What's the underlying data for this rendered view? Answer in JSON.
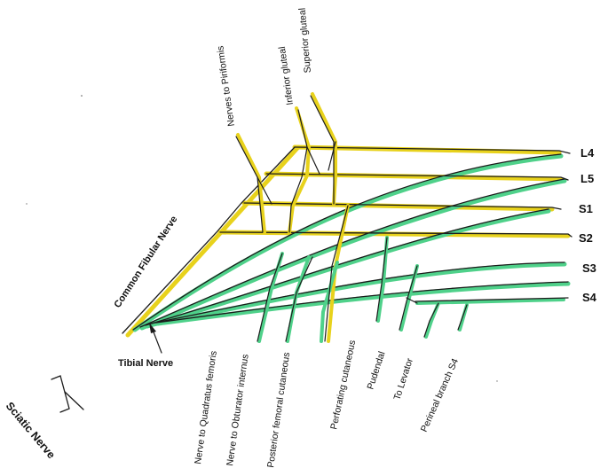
{
  "diagram": {
    "title": "Sciatic Nerve",
    "roots": [
      "L4",
      "L5",
      "S1",
      "S2",
      "S3",
      "S4"
    ],
    "upper_branches": [
      "Superior gluteal",
      "Inferior gluteal",
      "Nerves to Piriformis"
    ],
    "common_fibular": "Common Fibular Nerve",
    "tibial": "Tibial Nerve",
    "lower_branches": [
      "Nerve to Quadratus femoris",
      "Nerve to Obturator internus",
      "Posterior femoral cutaneous",
      "Perforating cutaneous",
      "Pudendal",
      "To Levator",
      "Perineal branch S4"
    ]
  },
  "colors": {
    "yellow_division": "#e8d21c",
    "green_division": "#4fd18a",
    "ink": "#1b1b1b"
  }
}
